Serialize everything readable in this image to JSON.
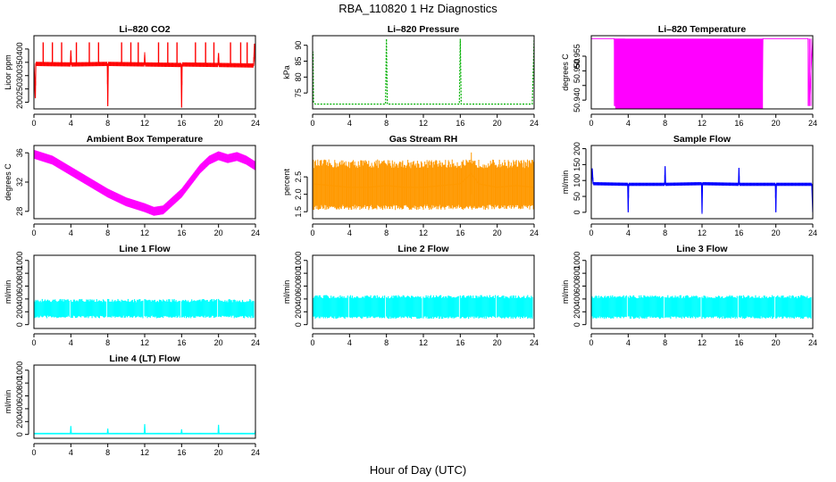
{
  "figure": {
    "title": "RBA_110820  1 Hz Diagnostics",
    "xlabel": "Hour of Day (UTC)"
  },
  "chart_data": [
    {
      "type": "line",
      "title": "Li–820 CO2",
      "ylabel": "Licor ppm",
      "color": "#ff0000",
      "xlim": [
        0,
        24
      ],
      "ylim": [
        175,
        450
      ],
      "yticks": [
        200,
        250,
        300,
        350,
        400
      ],
      "x": [
        0,
        0.15,
        0.2,
        0.3,
        2,
        3.95,
        4,
        4.05,
        6,
        7.95,
        8,
        8.05,
        10,
        11.95,
        12,
        12.05,
        14,
        15.95,
        16,
        16.05,
        18,
        19.95,
        20,
        20.05,
        23.8,
        23.9,
        24
      ],
      "y": [
        345,
        215,
        345,
        344,
        343,
        342,
        395,
        342,
        343,
        344,
        185,
        344,
        343,
        342,
        380,
        342,
        341,
        340,
        180,
        342,
        341,
        340,
        385,
        340,
        338,
        420,
        340
      ]
    },
    {
      "type": "line",
      "title": "Li–820 Pressure",
      "ylabel": "kPa",
      "color": "#00b000",
      "xlim": [
        0,
        24
      ],
      "ylim": [
        70,
        93
      ],
      "yticks": [
        75,
        80,
        85,
        90
      ],
      "x": [
        0,
        0.05,
        0.1,
        0.3,
        7.9,
        8.0,
        8.1,
        15.9,
        16.0,
        16.1,
        23.8,
        24
      ],
      "y": [
        72,
        88,
        72,
        71.5,
        71.5,
        92,
        71.5,
        71.5,
        92,
        71.5,
        71.5,
        92
      ]
    },
    {
      "type": "area",
      "title": "Li–820 Temperature",
      "ylabel": "degrees C",
      "color": "#ff00ff",
      "xlim": [
        0,
        24
      ],
      "ylim": [
        50.937,
        50.962
      ],
      "yticks": [
        50.94,
        50.945,
        50.95,
        50.955
      ],
      "x": [
        0,
        2.5,
        2.6,
        18.5,
        18.6,
        23.5,
        23.6,
        24
      ],
      "y": [
        50.961,
        50.961,
        50.938,
        50.938,
        50.961,
        50.961,
        50.938,
        50.961
      ]
    },
    {
      "type": "line",
      "title": "Ambient Box Temperature",
      "ylabel": "degrees C",
      "color": "#ff00ff",
      "xlim": [
        0,
        24
      ],
      "ylim": [
        27,
        37
      ],
      "yticks": [
        28,
        32,
        36
      ],
      "x": [
        0,
        2,
        4,
        6,
        8,
        10,
        12,
        13,
        14,
        16,
        18,
        19,
        20,
        21,
        22,
        23,
        24
      ],
      "y": [
        35.8,
        35,
        33.5,
        32,
        30.5,
        29.3,
        28.5,
        28,
        28.2,
        30.5,
        33.8,
        35,
        35.6,
        35.2,
        35.5,
        35,
        34.2
      ]
    },
    {
      "type": "line",
      "title": "Gas Stream RH",
      "ylabel": "percent",
      "color": "#ff9900",
      "xlim": [
        0,
        24
      ],
      "ylim": [
        1.3,
        3.4
      ],
      "yticks": [
        1.5,
        2.0,
        2.5
      ],
      "x": [
        0,
        2,
        4,
        6,
        8,
        10,
        12,
        14,
        16,
        17.2,
        18,
        20,
        22,
        24
      ],
      "y": [
        2.3,
        2.25,
        2.2,
        2.2,
        2.25,
        2.2,
        2.2,
        2.25,
        2.3,
        2.6,
        2.3,
        2.2,
        2.25,
        2.2
      ]
    },
    {
      "type": "line",
      "title": "Sample Flow",
      "ylabel": "ml/min",
      "color": "#0000ff",
      "xlim": [
        0,
        24
      ],
      "ylim": [
        -20,
        210
      ],
      "yticks": [
        0,
        50,
        100,
        150,
        200
      ],
      "x": [
        0,
        0.1,
        0.2,
        3.95,
        4,
        4.05,
        7.95,
        8,
        8.05,
        11.95,
        12,
        12.05,
        15.95,
        16,
        16.05,
        19.95,
        20,
        20.05,
        23.9,
        24
      ],
      "y": [
        88,
        138,
        90,
        88,
        0,
        88,
        88,
        145,
        88,
        90,
        0,
        90,
        88,
        140,
        88,
        88,
        0,
        88,
        88,
        0
      ]
    },
    {
      "type": "line",
      "title": "Line 1 Flow",
      "ylabel": "ml/min",
      "color": "#00ffff",
      "xlim": [
        0,
        24
      ],
      "ylim": [
        -60,
        1080
      ],
      "yticks": [
        0,
        200,
        400,
        600,
        800,
        1000
      ],
      "band": [
        100,
        400
      ],
      "x": [
        0,
        2,
        4,
        6,
        8,
        10,
        12,
        14,
        16,
        18,
        20,
        22,
        24
      ],
      "y": [
        250,
        250,
        250,
        250,
        250,
        250,
        250,
        250,
        250,
        250,
        250,
        250,
        250
      ]
    },
    {
      "type": "line",
      "title": "Line 2 Flow",
      "ylabel": "ml/min",
      "color": "#00ffff",
      "xlim": [
        0,
        24
      ],
      "ylim": [
        -60,
        1080
      ],
      "yticks": [
        0,
        200,
        400,
        600,
        800,
        1000
      ],
      "band": [
        90,
        460
      ],
      "x": [
        0,
        2,
        4,
        6,
        8,
        10,
        12,
        14,
        16,
        18,
        20,
        22,
        24
      ],
      "y": [
        275,
        275,
        275,
        275,
        275,
        275,
        275,
        275,
        275,
        275,
        275,
        275,
        275
      ]
    },
    {
      "type": "line",
      "title": "Line 3 Flow",
      "ylabel": "ml/min",
      "color": "#00ffff",
      "xlim": [
        0,
        24
      ],
      "ylim": [
        -60,
        1080
      ],
      "yticks": [
        0,
        200,
        400,
        600,
        800,
        1000
      ],
      "band": [
        90,
        460
      ],
      "x": [
        0,
        2,
        4,
        6,
        8,
        10,
        12,
        14,
        16,
        18,
        20,
        22,
        24
      ],
      "y": [
        275,
        275,
        275,
        275,
        275,
        275,
        275,
        275,
        275,
        275,
        275,
        275,
        275
      ]
    },
    {
      "type": "line",
      "title": "Line 4 (LT) Flow",
      "ylabel": "ml/min",
      "color": "#00ffff",
      "xlim": [
        0,
        24
      ],
      "ylim": [
        -60,
        1080
      ],
      "yticks": [
        0,
        200,
        400,
        600,
        800,
        1000
      ],
      "x": [
        0,
        3.95,
        4,
        4.05,
        7.95,
        8,
        8.05,
        11.95,
        12,
        12.05,
        15.95,
        16,
        16.05,
        19.95,
        20,
        20.05,
        23.95,
        24
      ],
      "y": [
        10,
        10,
        130,
        10,
        10,
        90,
        10,
        10,
        160,
        10,
        10,
        80,
        10,
        10,
        150,
        10,
        10,
        70
      ]
    }
  ]
}
